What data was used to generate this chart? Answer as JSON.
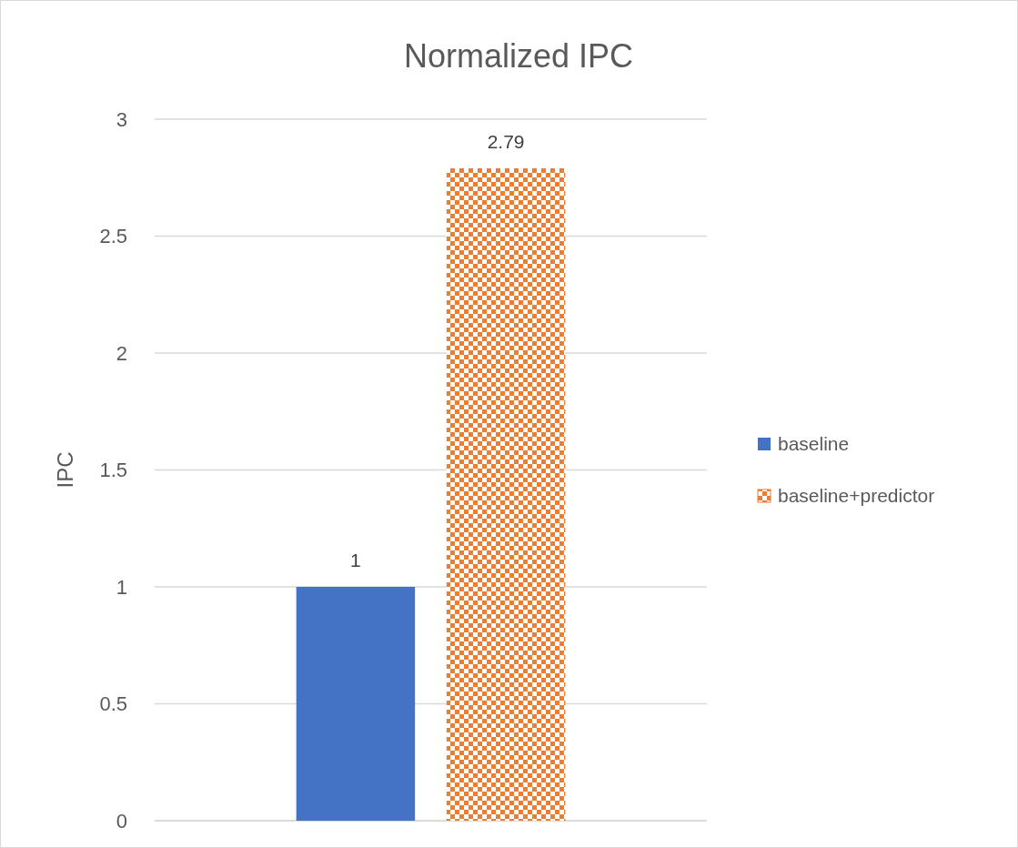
{
  "chart_data": {
    "type": "bar",
    "title": "Normalized IPC",
    "ylabel": "IPC",
    "categories": [
      null
    ],
    "series": [
      {
        "name": "baseline",
        "color": "#4472c4",
        "values": [
          1
        ]
      },
      {
        "name": "baseline+predictor",
        "color": "#ed7d31",
        "values": [
          2.79
        ]
      }
    ],
    "ylim": [
      0,
      3
    ],
    "yticks": [
      0,
      0.5,
      1,
      1.5,
      2,
      2.5,
      3
    ],
    "grid": "y",
    "legend": "right",
    "data_labels": true
  }
}
